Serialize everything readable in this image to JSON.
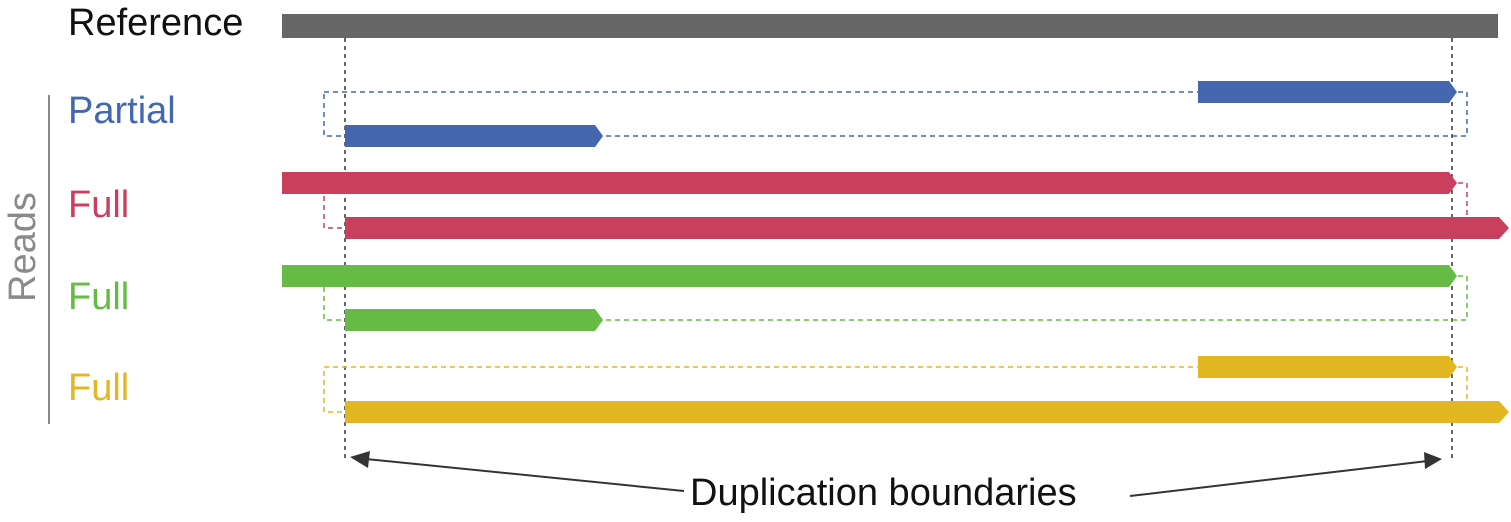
{
  "reference_label": "Reference",
  "reads_label": "Reads",
  "boundaries_label": "Duplication boundaries",
  "colors": {
    "reference": "#666666",
    "divider": "#888888",
    "boundary_line": "#333333",
    "arrow": "#333333"
  },
  "groups": [
    {
      "label": "Partial",
      "color": "#4467b0"
    },
    {
      "label": "Full",
      "color": "#c8405e"
    },
    {
      "label": "Full",
      "color": "#66bb44"
    },
    {
      "label": "Full",
      "color": "#e2b722"
    }
  ]
}
